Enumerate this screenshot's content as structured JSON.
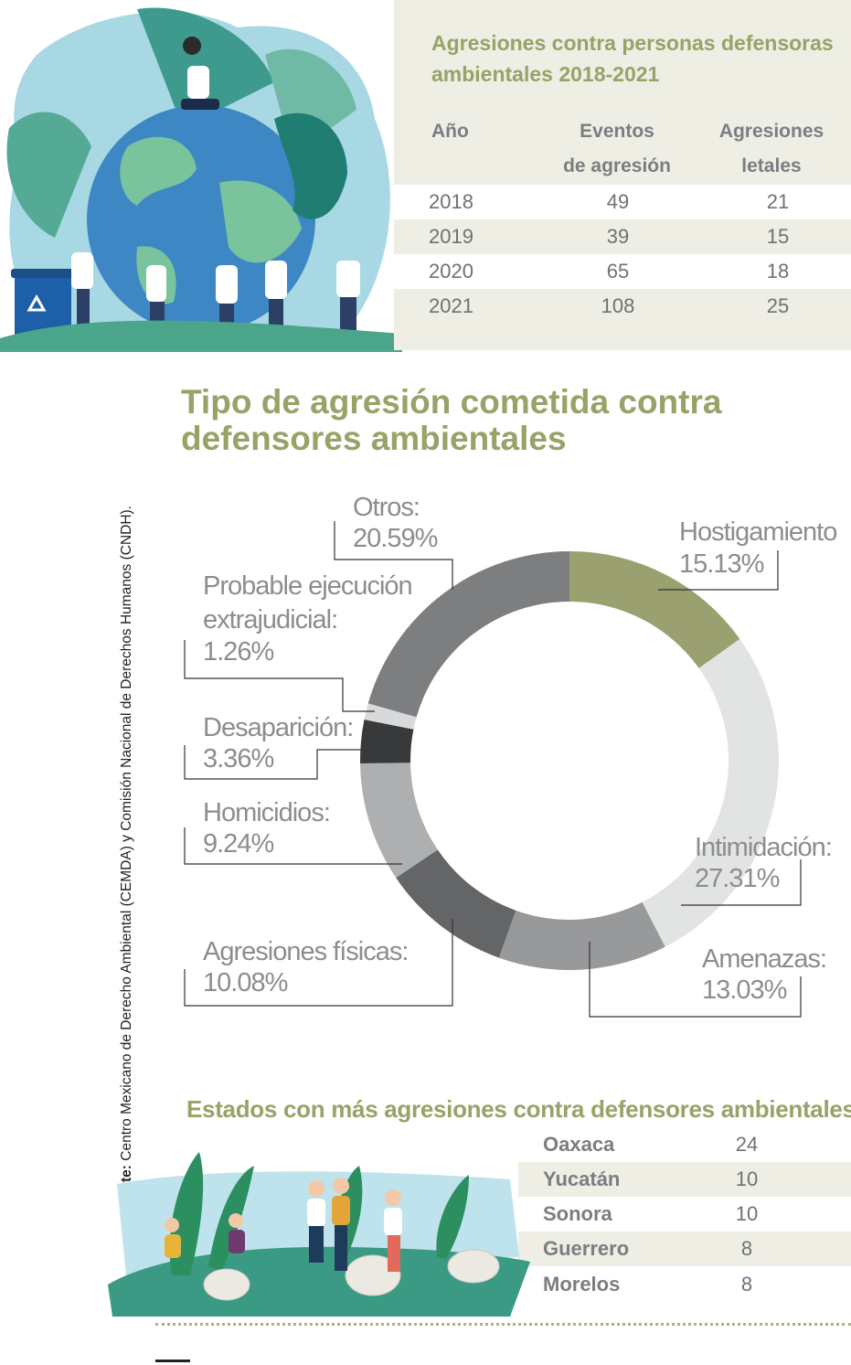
{
  "table": {
    "title": "Agresiones contra personas defensoras ambientales 2018-2021",
    "headers": {
      "year": "Año",
      "events_l1": "Eventos",
      "events_l2": "de agresión",
      "lethal_l1": "Agresiones",
      "lethal_l2": "letales"
    },
    "rows": [
      {
        "year": "2018",
        "events": "49",
        "lethal": "21"
      },
      {
        "year": "2019",
        "events": "39",
        "lethal": "15"
      },
      {
        "year": "2020",
        "events": "65",
        "lethal": "18"
      },
      {
        "year": "2021",
        "events": "108",
        "lethal": "25"
      }
    ]
  },
  "chart_data": {
    "type": "pie",
    "title": "Tipo de agresión cometida contra defensores ambientales",
    "slices": [
      {
        "label": "Hostigamiento",
        "value": 15.13,
        "display": "15.13%",
        "color": "#9aa070"
      },
      {
        "label": "Intimidación:",
        "value": 27.31,
        "display": "27.31%",
        "color": "#e2e3e3"
      },
      {
        "label": "Amenazas:",
        "value": 13.03,
        "display": "13.03%",
        "color": "#98999b"
      },
      {
        "label": "Agresiones físicas:",
        "value": 10.08,
        "display": "10.08%",
        "color": "#646567"
      },
      {
        "label": "Homicidios:",
        "value": 9.24,
        "display": "9.24%",
        "color": "#aeafb1"
      },
      {
        "label": "Desaparición:",
        "value": 3.36,
        "display": "3.36%",
        "color": "#38393b"
      },
      {
        "label_l1": "Probable ejecución",
        "label_l2": "extrajudicial:",
        "value": 1.26,
        "display": "1.26%",
        "color": "#d8d9da"
      },
      {
        "label": "Otros:",
        "value": 20.59,
        "display": "20.59%",
        "color": "#7d7e80"
      }
    ]
  },
  "source": {
    "prefix": "Fuente:",
    "text": " Centro Mexicano de Derecho Ambiental (CEMDA) y Comisión Nacional de Derechos Humanos (CNDH)."
  },
  "states": {
    "title": "Estados con más agresiones contra defensores ambientales:",
    "rows": [
      {
        "name": "Oaxaca",
        "value": "24"
      },
      {
        "name": "Yucatán",
        "value": "10"
      },
      {
        "name": "Sonora",
        "value": "10"
      },
      {
        "name": "Guerrero",
        "value": "8"
      },
      {
        "name": "Morelos",
        "value": "8"
      }
    ]
  }
}
